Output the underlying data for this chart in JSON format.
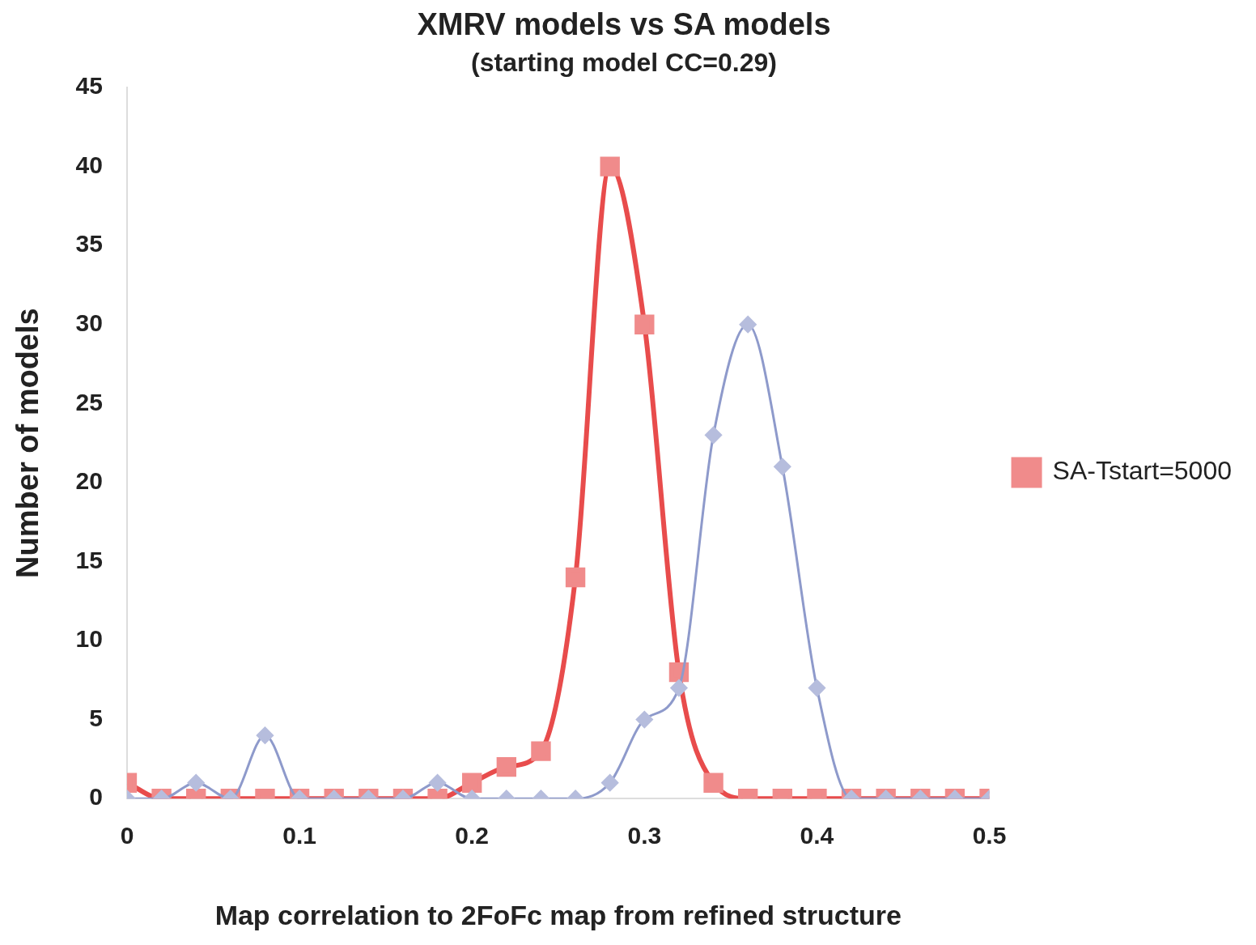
{
  "chart_data": {
    "type": "line",
    "title": "XMRV models vs SA models",
    "subtitle": "(starting model CC=0.29)",
    "xlabel": "Map correlation to 2FoFc map from refined structure",
    "ylabel": "Number of models",
    "x": [
      0,
      0.02,
      0.04,
      0.06,
      0.08,
      0.1,
      0.12,
      0.14,
      0.16,
      0.18,
      0.2,
      0.22,
      0.24,
      0.26,
      0.28,
      0.3,
      0.32,
      0.34,
      0.36,
      0.38,
      0.4,
      0.42,
      0.44,
      0.46,
      0.48,
      0.5
    ],
    "series": [
      {
        "color": "#8e9acb",
        "marker": "diamond",
        "values": [
          0,
          0,
          1,
          0,
          4,
          0,
          0,
          0,
          0,
          1,
          0,
          0,
          0,
          0,
          1,
          5,
          7,
          23,
          30,
          21,
          7,
          0,
          0,
          0,
          0,
          0
        ]
      },
      {
        "name": "SA-Tstart=5000",
        "color": "#e84c4c",
        "marker": "square",
        "values": [
          1,
          0,
          0,
          0,
          0,
          0,
          0,
          0,
          0,
          0,
          1,
          2,
          3,
          14,
          40,
          30,
          8,
          1,
          0,
          0,
          0,
          0,
          0,
          0,
          0,
          0
        ]
      }
    ],
    "xlim": [
      0,
      0.5
    ],
    "xticks": [
      0,
      0.1,
      0.2,
      0.3,
      0.4,
      0.5
    ],
    "ylim": [
      0,
      45
    ],
    "yticks": [
      0,
      5,
      10,
      15,
      20,
      25,
      30,
      35,
      40,
      45
    ],
    "grid": false,
    "legend": "right"
  }
}
